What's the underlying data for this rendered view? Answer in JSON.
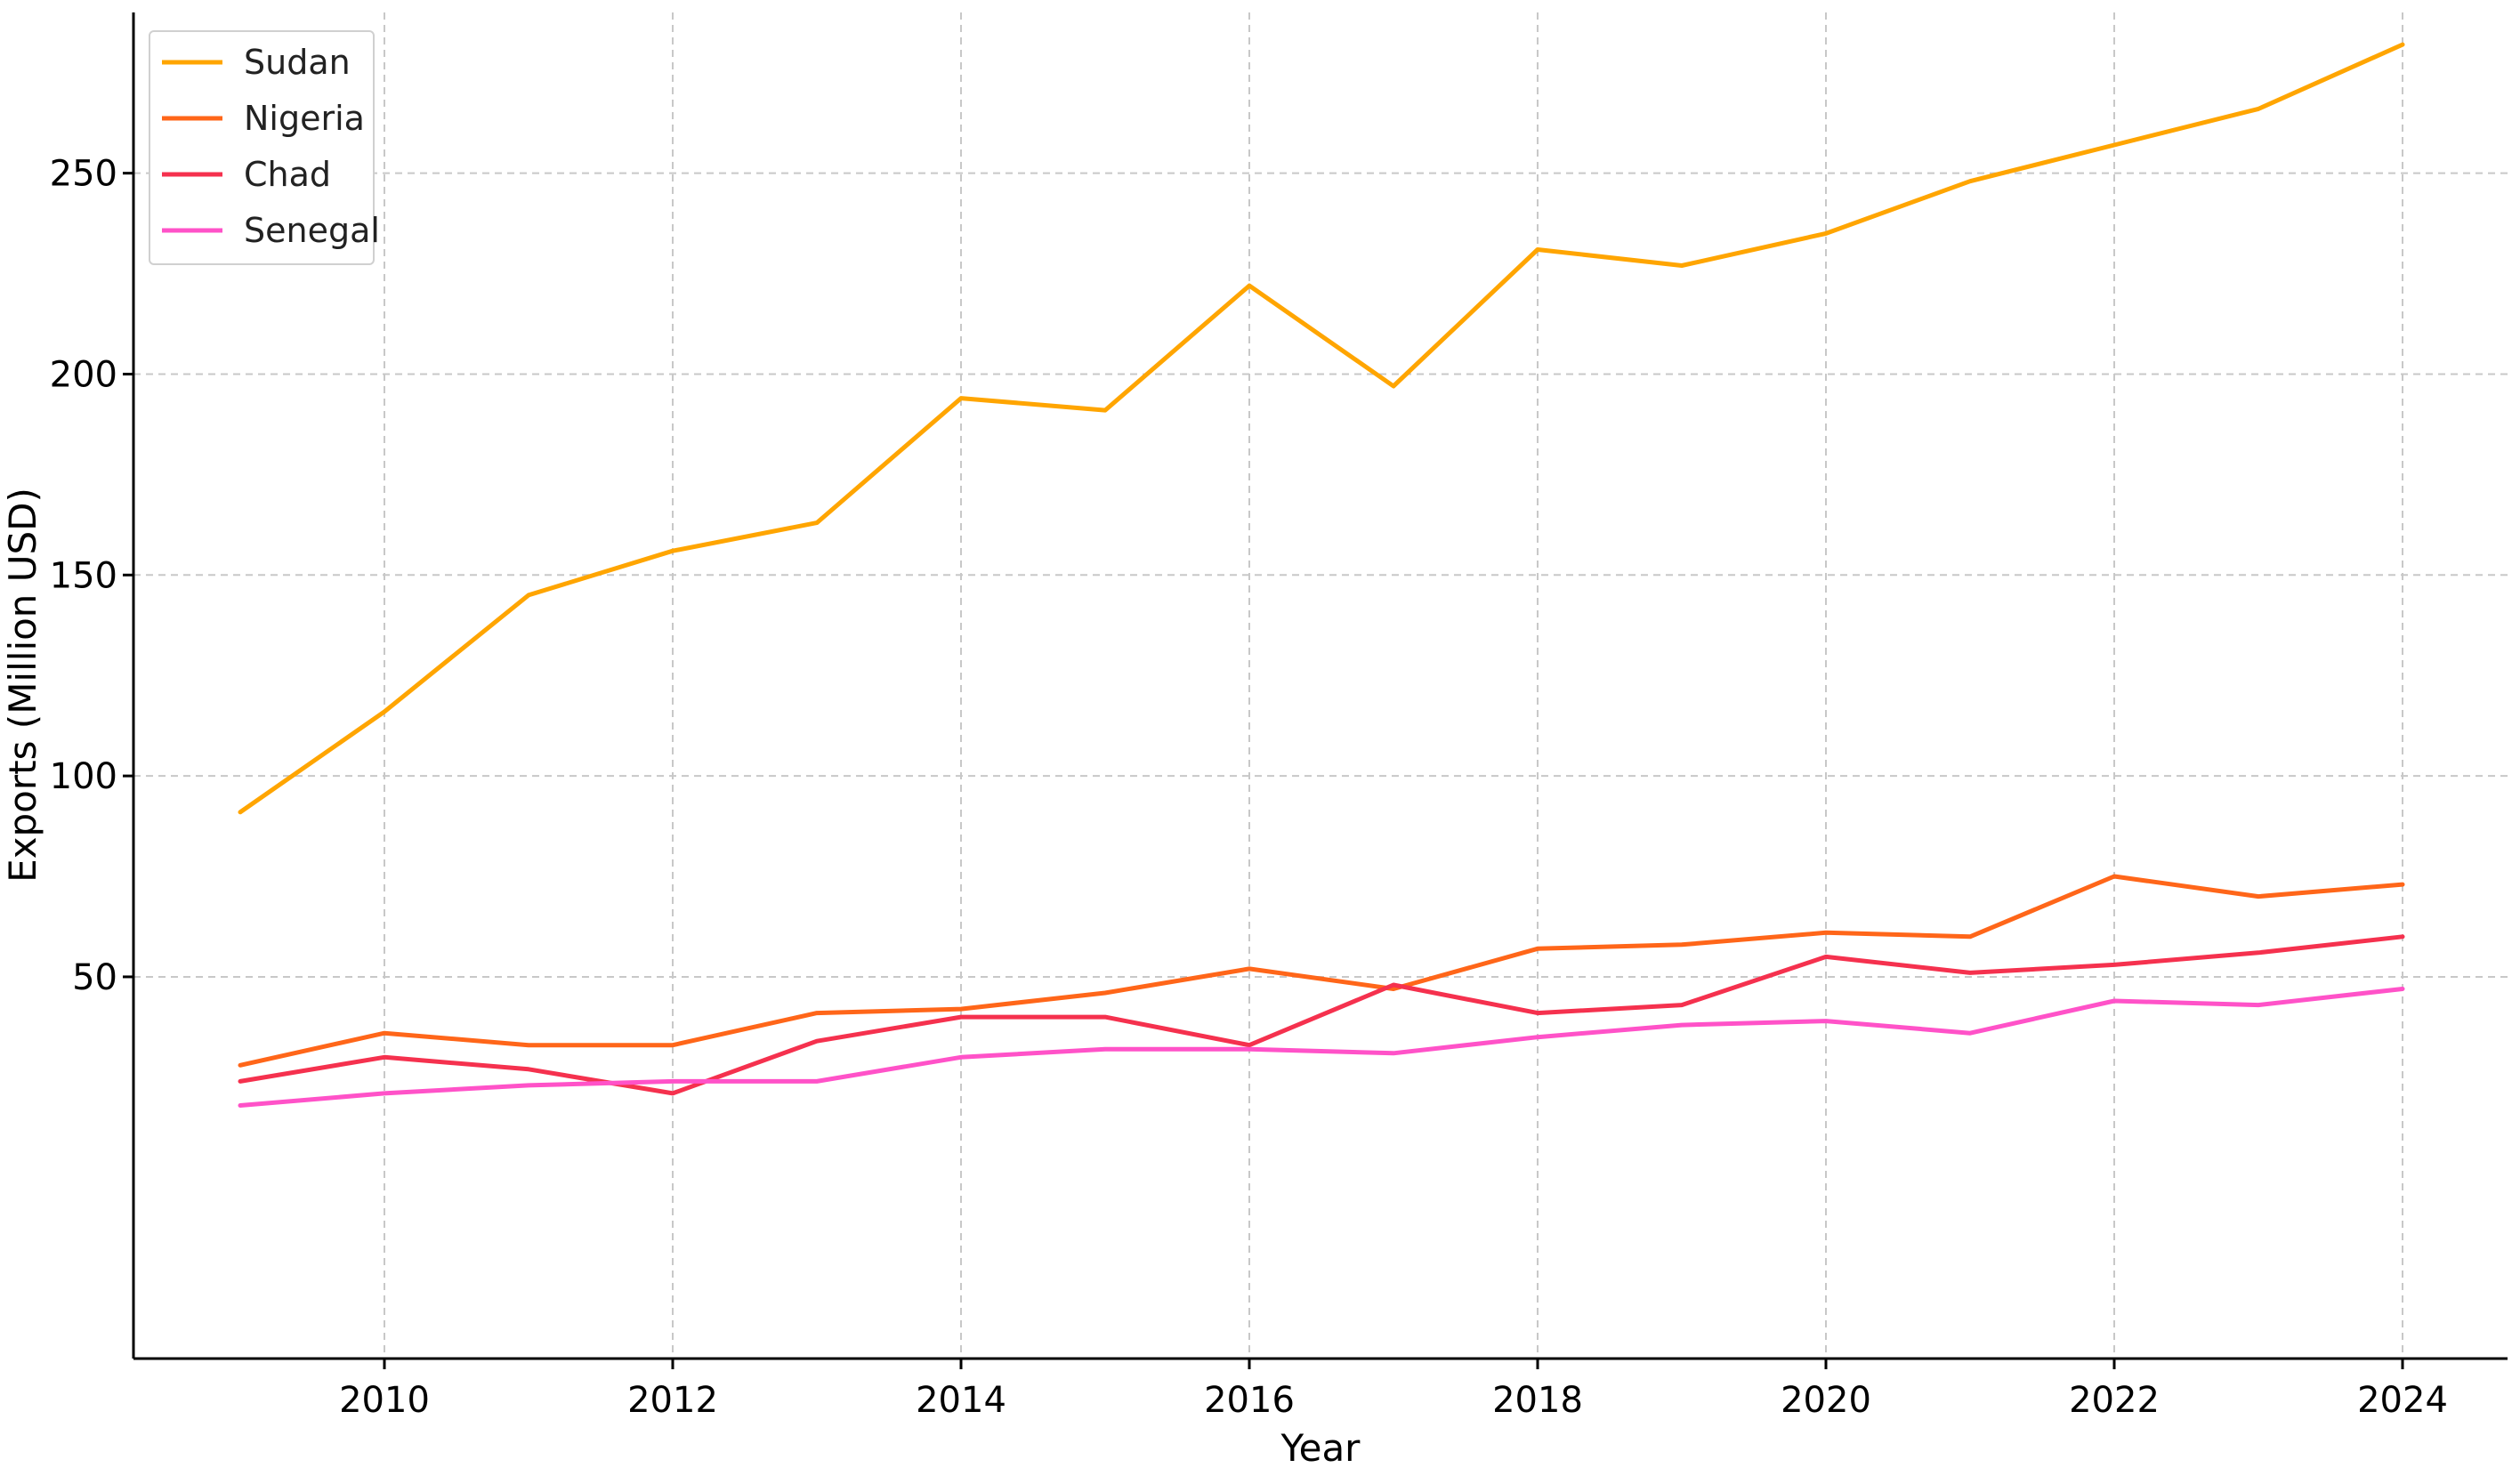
{
  "chart_data": {
    "type": "line",
    "title": "",
    "xlabel": "Year",
    "ylabel": "Exports (Million USD)",
    "xlim": [
      2008.3,
      2024.8
    ],
    "ylim": [
      -45,
      290
    ],
    "x_ticks": [
      2010,
      2012,
      2014,
      2016,
      2018,
      2020,
      2022,
      2024
    ],
    "y_ticks": [
      50,
      100,
      150,
      200,
      250
    ],
    "grid": true,
    "legend_position": "top-left",
    "x": [
      2009,
      2010,
      2011,
      2012,
      2013,
      2014,
      2015,
      2016,
      2017,
      2018,
      2019,
      2020,
      2021,
      2022,
      2023,
      2024
    ],
    "series": [
      {
        "name": "Sudan",
        "color": "#FFA500",
        "values": [
          91,
          116,
          145,
          156,
          163,
          194,
          191,
          222,
          197,
          231,
          227,
          235,
          248,
          257,
          266,
          282
        ]
      },
      {
        "name": "Nigeria",
        "color": "#FF6619",
        "values": [
          28,
          36,
          33,
          33,
          41,
          42,
          46,
          52,
          47,
          57,
          58,
          61,
          60,
          75,
          70,
          73
        ]
      },
      {
        "name": "Chad",
        "color": "#F5314E",
        "values": [
          24,
          30,
          27,
          21,
          34,
          40,
          40,
          33,
          48,
          41,
          43,
          55,
          51,
          53,
          56,
          60
        ]
      },
      {
        "name": "Senegal",
        "color": "#FF52C8",
        "values": [
          18,
          21,
          23,
          24,
          24,
          30,
          32,
          32,
          31,
          35,
          38,
          39,
          36,
          44,
          43,
          47
        ]
      }
    ]
  }
}
